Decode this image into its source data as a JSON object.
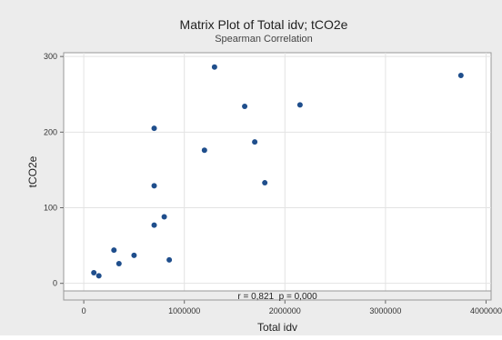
{
  "chart_data": {
    "type": "scatter",
    "title": "Matrix Plot of Total idv; tCO2e",
    "subtitle": "Spearman Correlation",
    "xlabel": "Total idv",
    "ylabel": "tCO2e",
    "xlim": [
      -200000,
      4050000
    ],
    "ylim": [
      -10,
      305
    ],
    "xticks": [
      0,
      1000000,
      2000000,
      3000000,
      4000000
    ],
    "xtick_labels": [
      "0",
      "1000000",
      "2000000",
      "3000000",
      "4000000"
    ],
    "yticks": [
      0,
      100,
      200,
      300
    ],
    "ytick_labels": [
      "0",
      "100",
      "200",
      "300"
    ],
    "grid": true,
    "point_color": "#1f4e8c",
    "points": [
      {
        "x": 100000,
        "y": 14
      },
      {
        "x": 150000,
        "y": 10
      },
      {
        "x": 300000,
        "y": 44
      },
      {
        "x": 350000,
        "y": 26
      },
      {
        "x": 500000,
        "y": 37
      },
      {
        "x": 700000,
        "y": 205
      },
      {
        "x": 700000,
        "y": 129
      },
      {
        "x": 700000,
        "y": 77
      },
      {
        "x": 800000,
        "y": 88
      },
      {
        "x": 850000,
        "y": 31
      },
      {
        "x": 1200000,
        "y": 176
      },
      {
        "x": 1300000,
        "y": 286
      },
      {
        "x": 1600000,
        "y": 234
      },
      {
        "x": 1700000,
        "y": 187
      },
      {
        "x": 1800000,
        "y": 133
      },
      {
        "x": 2150000,
        "y": 236
      },
      {
        "x": 3750000,
        "y": 275
      }
    ],
    "annotation": "r = 0,821  p = 0,000"
  }
}
